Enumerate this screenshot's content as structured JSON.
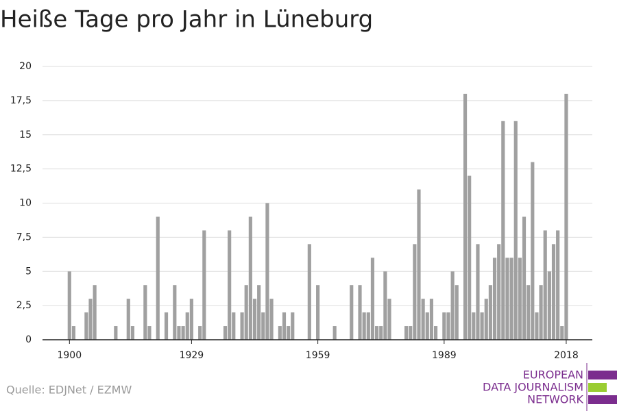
{
  "chart_data": {
    "type": "bar",
    "title": "Heiße Tage pro Jahr in Lüneburg",
    "source": "Quelle: EDJNet / EZMW",
    "logo": [
      "EUROPEAN",
      "DATA JOURNALISM",
      "NETWORK"
    ],
    "color": "#a0a0a0",
    "grid": true,
    "x": [
      1900,
      1901,
      1902,
      1903,
      1904,
      1905,
      1906,
      1907,
      1908,
      1909,
      1910,
      1911,
      1912,
      1913,
      1914,
      1915,
      1916,
      1917,
      1918,
      1919,
      1920,
      1921,
      1922,
      1923,
      1924,
      1925,
      1926,
      1927,
      1928,
      1929,
      1930,
      1931,
      1932,
      1933,
      1934,
      1935,
      1936,
      1937,
      1938,
      1939,
      1940,
      1941,
      1942,
      1943,
      1944,
      1945,
      1946,
      1947,
      1948,
      1949,
      1950,
      1951,
      1952,
      1953,
      1954,
      1955,
      1956,
      1957,
      1958,
      1959,
      1960,
      1961,
      1962,
      1963,
      1964,
      1965,
      1966,
      1967,
      1968,
      1969,
      1970,
      1971,
      1972,
      1973,
      1974,
      1975,
      1976,
      1977,
      1978,
      1979,
      1980,
      1981,
      1982,
      1983,
      1984,
      1985,
      1986,
      1987,
      1988,
      1989,
      1990,
      1991,
      1992,
      1993,
      1994,
      1995,
      1996,
      1997,
      1998,
      1999,
      2000,
      2001,
      2002,
      2003,
      2004,
      2005,
      2006,
      2007,
      2008,
      2009,
      2010,
      2011,
      2012,
      2013,
      2014,
      2015,
      2016,
      2017,
      2018
    ],
    "values": [
      5,
      1,
      0,
      0,
      2,
      3,
      4,
      0,
      0,
      0,
      0,
      1,
      0,
      0,
      3,
      1,
      0,
      0,
      4,
      1,
      0,
      9,
      0,
      2,
      0,
      4,
      1,
      1,
      2,
      3,
      0,
      1,
      8,
      0,
      0,
      0,
      0,
      1,
      8,
      2,
      0,
      2,
      4,
      9,
      3,
      4,
      2,
      10,
      3,
      0,
      1,
      2,
      1,
      2,
      0,
      0,
      0,
      7,
      0,
      4,
      0,
      0,
      0,
      1,
      0,
      0,
      0,
      4,
      0,
      4,
      2,
      2,
      6,
      1,
      1,
      5,
      3,
      0,
      0,
      0,
      1,
      1,
      7,
      11,
      3,
      2,
      3,
      1,
      0,
      2,
      2,
      5,
      4,
      0,
      18,
      12,
      2,
      7,
      2,
      3,
      4,
      6,
      7,
      16,
      6,
      6,
      16,
      6,
      9,
      4,
      13,
      2,
      4,
      8,
      5,
      7,
      8,
      1,
      18
    ],
    "xlim": [
      1893.6,
      2024.2
    ],
    "xticks": [
      1900,
      1929,
      1959,
      1989,
      2018
    ],
    "ylim": [
      0,
      20
    ],
    "yticks": [
      0,
      {
        "value": 2.5,
        "label": "2,5"
      },
      5,
      {
        "value": 7.5,
        "label": "7,5"
      },
      10,
      {
        "value": 12.5,
        "label": "12,5"
      },
      15,
      {
        "value": 17.5,
        "label": "17,5"
      },
      20
    ]
  }
}
